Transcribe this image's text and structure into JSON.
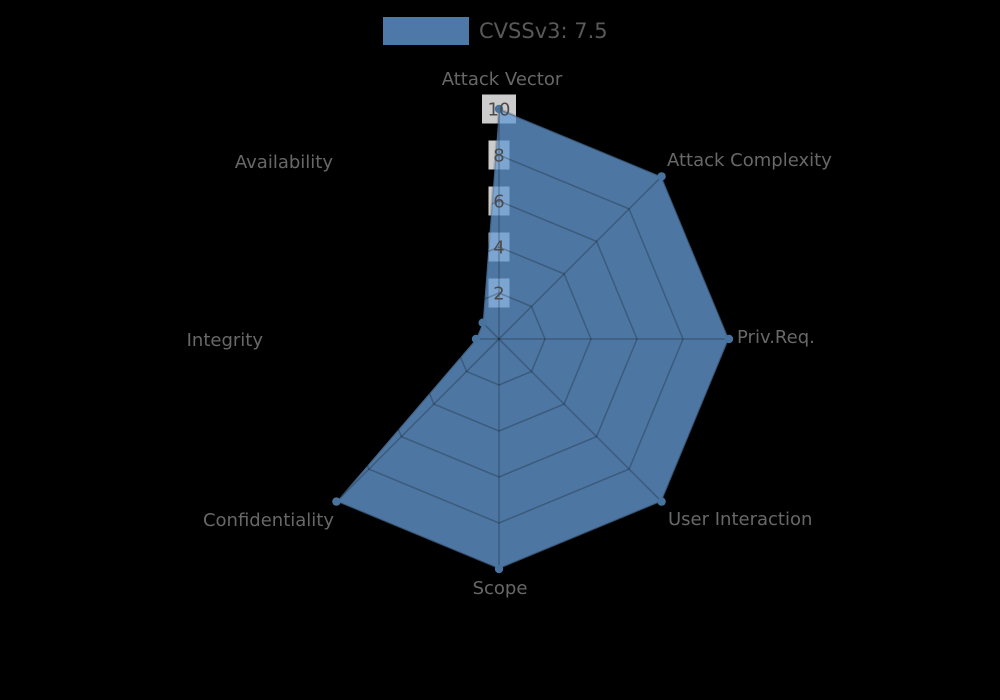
{
  "legend": {
    "label": "CVSSv3: 7.5",
    "swatch_color": "#4d78a8"
  },
  "chart_data": {
    "type": "radar",
    "categories": [
      "Attack Vector",
      "Attack Complexity",
      "Priv.Req.",
      "User Interaction",
      "Scope",
      "Confidentiality",
      "Integrity",
      "Availability"
    ],
    "series": [
      {
        "name": "CVSSv3: 7.5",
        "values": [
          10,
          10,
          10,
          10,
          10,
          10,
          1,
          1
        ]
      }
    ],
    "radial_ticks": [
      2,
      4,
      6,
      8,
      10
    ],
    "rlim": [
      0,
      10
    ],
    "grid": true,
    "grid_shape": "polygon",
    "legend_position": "top-center",
    "title": "",
    "style": {
      "fill_color": "#649bd3",
      "fill_opacity": 0.77,
      "marker_color": "#48739e",
      "grid_color": "#000000",
      "grid_opacity": 0.22,
      "tick_box_color": "#ffffff",
      "tick_box_opacity": 0.8,
      "label_color": "#686868",
      "background": "#000000"
    }
  }
}
